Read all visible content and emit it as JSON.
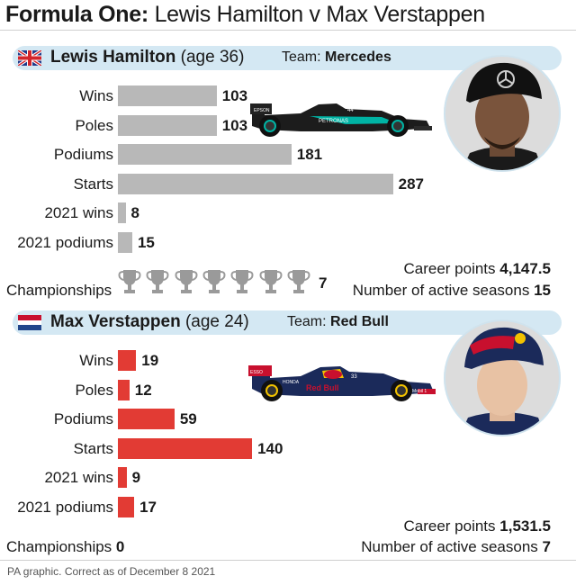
{
  "title": {
    "bold": "Formula One:",
    "rest": " Lewis Hamilton v Max Verstappen"
  },
  "colors": {
    "hamilton_bar": "#b8b8b8",
    "verstappen_bar": "#e23b34",
    "band": "#d4e8f3"
  },
  "drivers": [
    {
      "name": "Lewis Hamilton",
      "age": "(age 36)",
      "team_label": "Team:",
      "team": "Mercedes",
      "flag_icon": "union-jack-flag-icon",
      "championships_label": "Championships",
      "championships": "7",
      "career_points_label": "Career points",
      "career_points": "4,147.5",
      "active_seasons_label": "Number of active seasons",
      "active_seasons": "15",
      "car_labels": {
        "sponsor1": "EPSON",
        "sponsor2": "PETRONAS",
        "number": "44"
      }
    },
    {
      "name": "Max Verstappen",
      "age": "(age 24)",
      "team_label": "Team:",
      "team": "Red Bull",
      "flag_icon": "netherlands-flag-icon",
      "championships_label": "Championships",
      "championships": "0",
      "career_points_label": "Career points",
      "career_points": "1,531.5",
      "active_seasons_label": "Number of active seasons",
      "active_seasons": "7",
      "car_labels": {
        "sponsor1": "Red Bull",
        "sponsor2": "Mobil 1",
        "number": "33",
        "sponsor3": "HONDA",
        "sponsor4": "ESSO"
      }
    }
  ],
  "chart_data": [
    {
      "type": "bar",
      "orientation": "horizontal",
      "series": [
        {
          "name": "Lewis Hamilton",
          "values": [
            103,
            103,
            181,
            287,
            8,
            15
          ]
        }
      ],
      "categories": [
        "Wins",
        "Poles",
        "Podiums",
        "Starts",
        "2021 wins",
        "2021 podiums"
      ],
      "value_labels": [
        "103",
        "103",
        "181",
        "287",
        "8",
        "15"
      ]
    },
    {
      "type": "bar",
      "orientation": "horizontal",
      "series": [
        {
          "name": "Max Verstappen",
          "values": [
            19,
            12,
            59,
            140,
            9,
            17
          ]
        }
      ],
      "categories": [
        "Wins",
        "Poles",
        "Podiums",
        "Starts",
        "2021 wins",
        "2021 podiums"
      ],
      "value_labels": [
        "19",
        "12",
        "59",
        "140",
        "9",
        "17"
      ]
    }
  ],
  "footer": "PA graphic. Correct as of December 8 2021"
}
